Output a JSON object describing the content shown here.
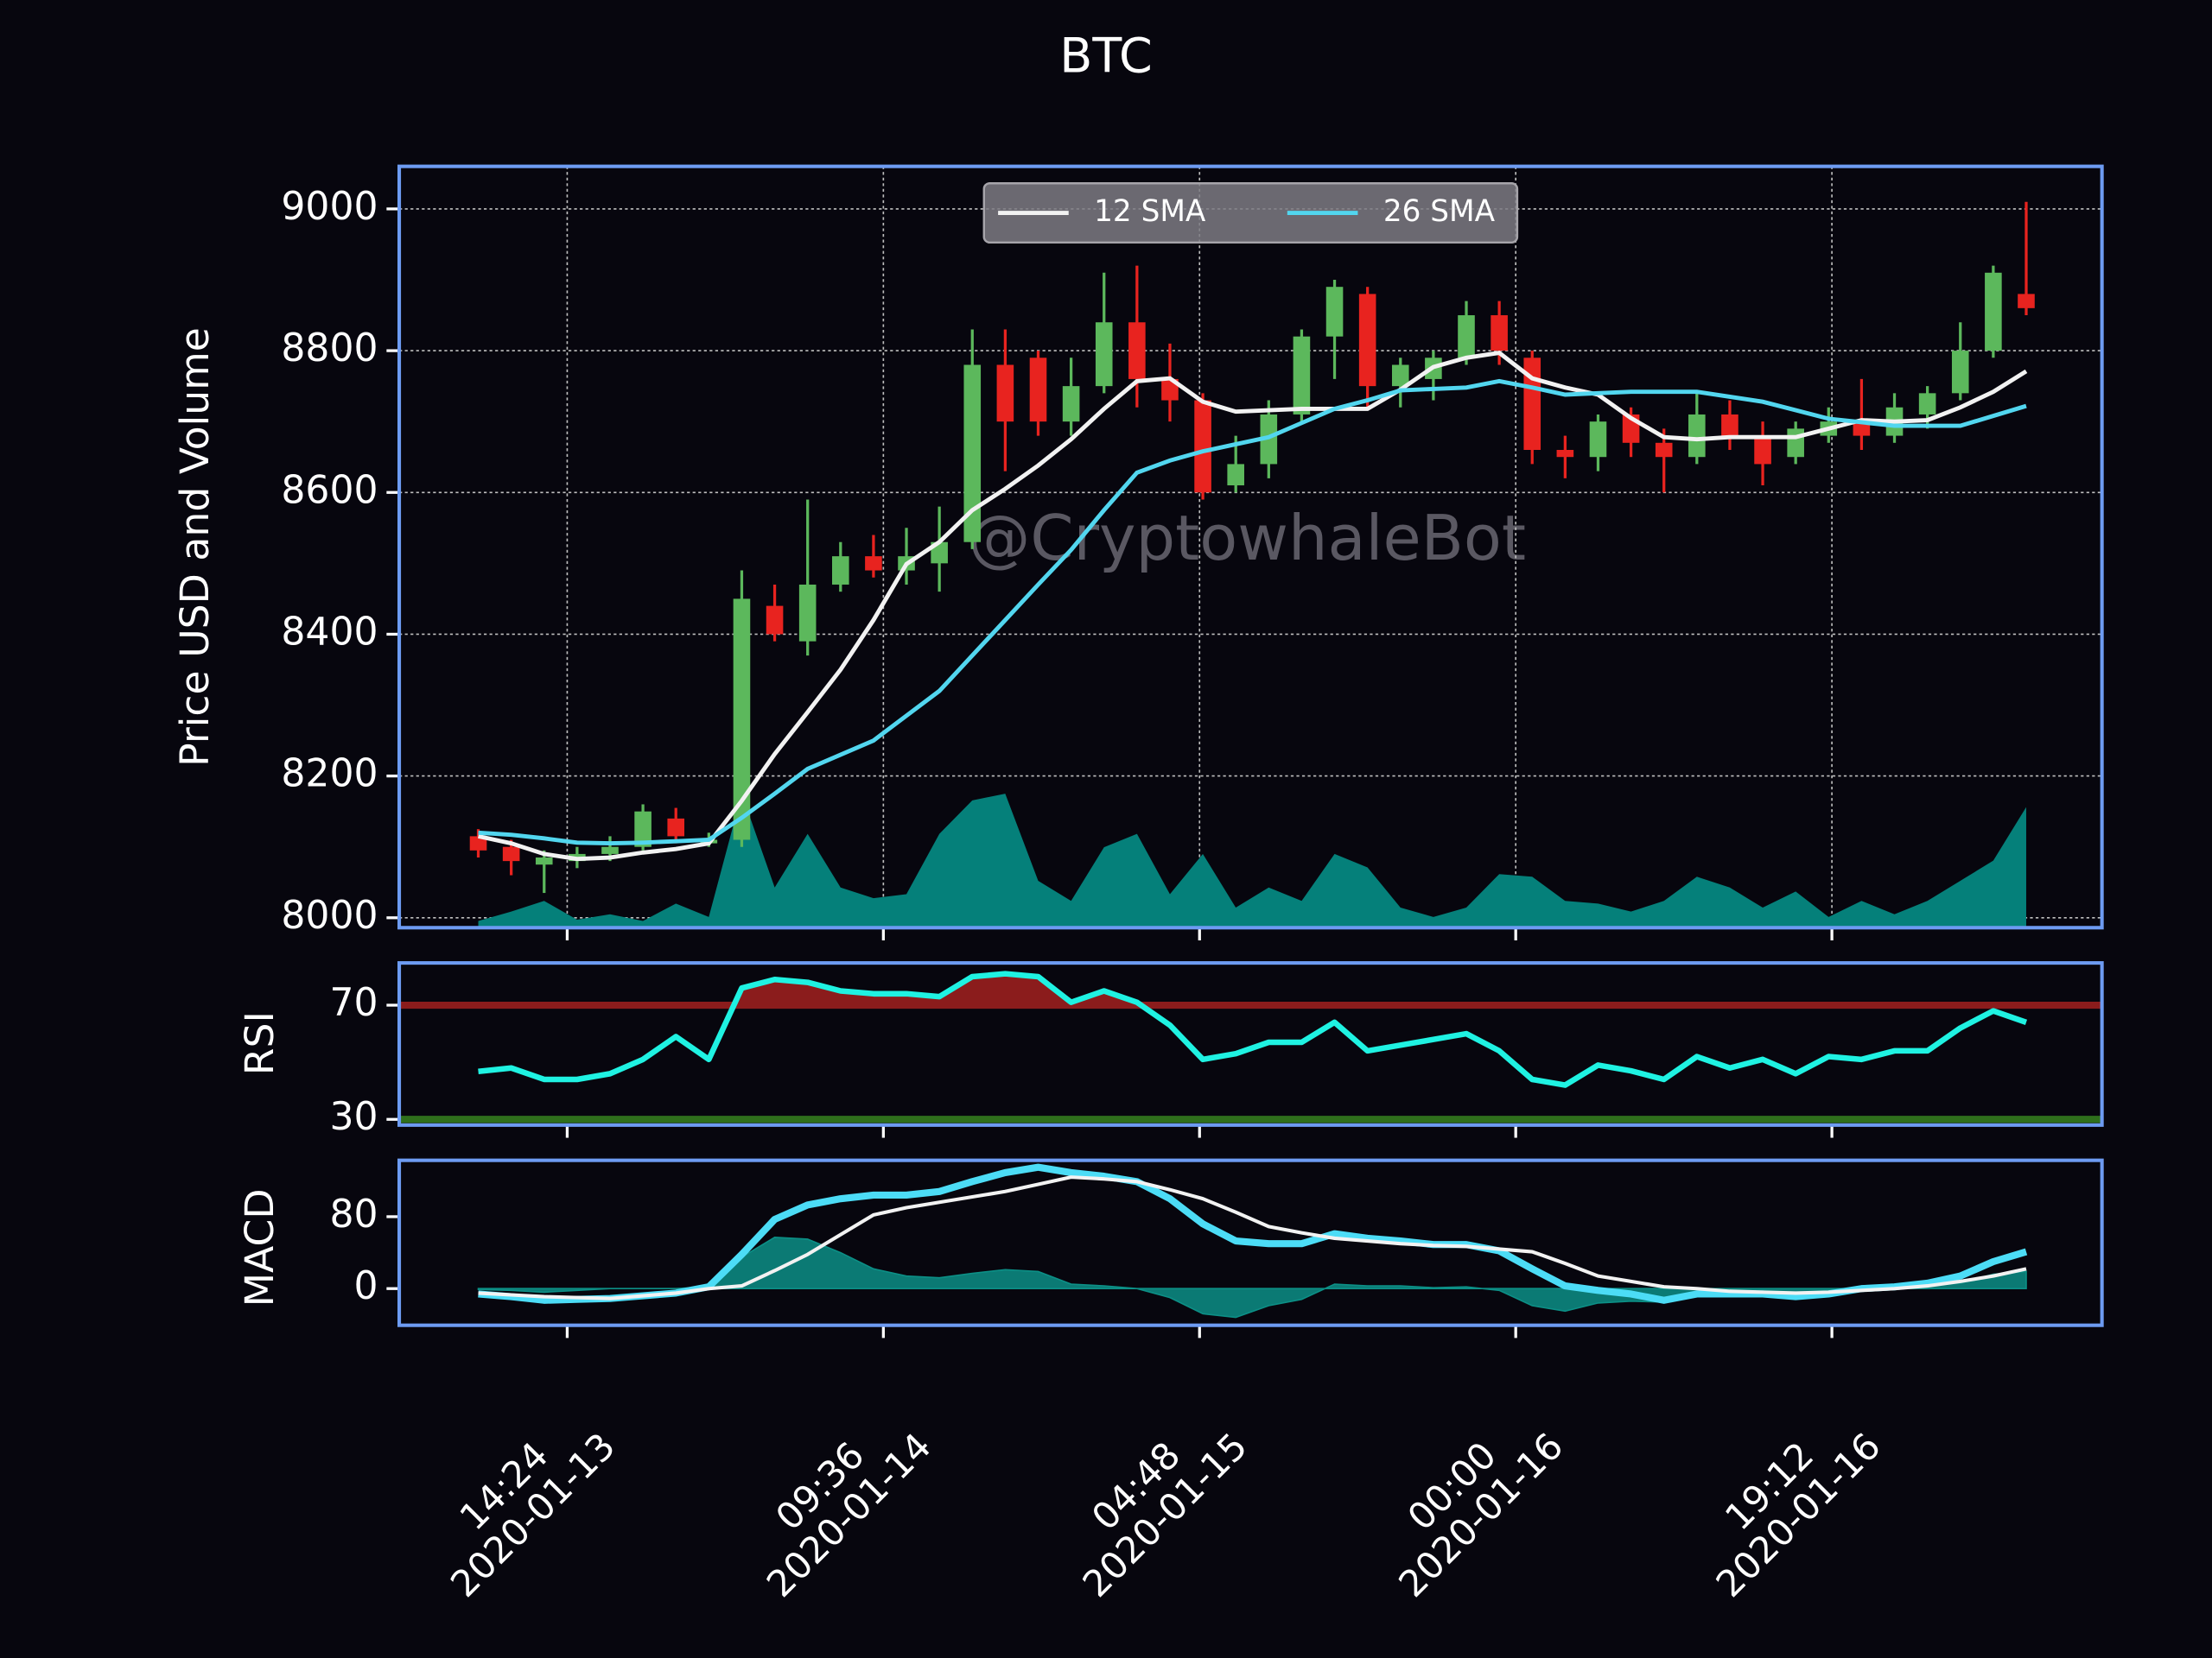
{
  "chart_data": [
    {
      "type": "candlestick",
      "title": "BTC",
      "ylabel": "Price USD and Volume",
      "watermark": "@CryptowhaleBot",
      "x": [
        "2020-01-13 09:00",
        "2020-01-13 11:00",
        "2020-01-13 13:00",
        "2020-01-13 15:00",
        "2020-01-13 17:00",
        "2020-01-13 19:00",
        "2020-01-13 21:00",
        "2020-01-13 23:00",
        "2020-01-14 01:00",
        "2020-01-14 03:00",
        "2020-01-14 05:00",
        "2020-01-14 07:00",
        "2020-01-14 09:00",
        "2020-01-14 11:00",
        "2020-01-14 13:00",
        "2020-01-14 15:00",
        "2020-01-14 17:00",
        "2020-01-14 19:00",
        "2020-01-14 21:00",
        "2020-01-14 23:00",
        "2020-01-15 01:00",
        "2020-01-15 03:00",
        "2020-01-15 05:00",
        "2020-01-15 07:00",
        "2020-01-15 09:00",
        "2020-01-15 11:00",
        "2020-01-15 13:00",
        "2020-01-15 15:00",
        "2020-01-15 17:00",
        "2020-01-15 19:00",
        "2020-01-15 21:00",
        "2020-01-15 23:00",
        "2020-01-16 01:00",
        "2020-01-16 03:00",
        "2020-01-16 05:00",
        "2020-01-16 07:00",
        "2020-01-16 09:00",
        "2020-01-16 11:00",
        "2020-01-16 13:00",
        "2020-01-16 15:00",
        "2020-01-16 17:00",
        "2020-01-16 19:00",
        "2020-01-16 21:00",
        "2020-01-16 23:00",
        "2020-01-17 01:00",
        "2020-01-17 03:00",
        "2020-01-17 05:00",
        "2020-01-17 07:00"
      ],
      "open": [
        8115,
        8100,
        8075,
        8080,
        8090,
        8100,
        8140,
        8105,
        8110,
        8440,
        8390,
        8470,
        8510,
        8490,
        8500,
        8530,
        8780,
        8790,
        8700,
        8750,
        8840,
        8760,
        8730,
        8610,
        8640,
        8710,
        8820,
        8880,
        8750,
        8760,
        8790,
        8850,
        8790,
        8660,
        8650,
        8710,
        8670,
        8650,
        8710,
        8680,
        8650,
        8680,
        8700,
        8680,
        8710,
        8740,
        8800,
        8880
      ],
      "high": [
        8125,
        8110,
        8095,
        8100,
        8115,
        8160,
        8155,
        8120,
        8490,
        8470,
        8590,
        8530,
        8540,
        8550,
        8580,
        8830,
        8830,
        8800,
        8790,
        8910,
        8920,
        8810,
        8740,
        8680,
        8730,
        8830,
        8900,
        8890,
        8790,
        8800,
        8870,
        8870,
        8800,
        8680,
        8710,
        8720,
        8690,
        8740,
        8730,
        8700,
        8700,
        8720,
        8760,
        8740,
        8750,
        8840,
        8920,
        9010
      ],
      "low": [
        8085,
        8060,
        8035,
        8070,
        8080,
        8095,
        8105,
        8100,
        8100,
        8390,
        8370,
        8460,
        8480,
        8470,
        8460,
        8520,
        8630,
        8680,
        8680,
        8740,
        8720,
        8700,
        8590,
        8600,
        8620,
        8700,
        8760,
        8720,
        8720,
        8730,
        8780,
        8780,
        8640,
        8620,
        8630,
        8650,
        8600,
        8640,
        8660,
        8610,
        8640,
        8670,
        8660,
        8670,
        8690,
        8730,
        8790,
        8850
      ],
      "close": [
        8095,
        8080,
        8085,
        8090,
        8100,
        8150,
        8115,
        8110,
        8450,
        8400,
        8470,
        8510,
        8490,
        8510,
        8530,
        8780,
        8700,
        8700,
        8750,
        8840,
        8760,
        8730,
        8600,
        8640,
        8710,
        8820,
        8890,
        8750,
        8780,
        8790,
        8850,
        8800,
        8660,
        8650,
        8700,
        8670,
        8650,
        8710,
        8680,
        8640,
        8690,
        8700,
        8680,
        8720,
        8740,
        8800,
        8910,
        8860
      ],
      "up_color": "#5cb85c",
      "down_color": "#e8231f",
      "series": [
        {
          "name": "12 SMA",
          "color": "#f2f2f2",
          "values": [
            8115,
            8105,
            8090,
            8083,
            8085,
            8092,
            8097,
            8105,
            8165,
            8231,
            8290,
            8350,
            8420,
            8499,
            8530,
            8575,
            8605,
            8638,
            8675,
            8718,
            8757,
            8761,
            8728,
            8714,
            8716,
            8718,
            8718,
            8718,
            8745,
            8777,
            8790,
            8797,
            8761,
            8748,
            8738,
            8705,
            8678,
            8675,
            8678,
            8678,
            8678,
            8690,
            8702,
            8700,
            8702,
            8720,
            8742,
            8771
          ]
        },
        {
          "name": "26 SMA",
          "color": "#52d6ef",
          "values": [
            8120,
            8117,
            8112,
            8106,
            8105,
            8106,
            8108,
            8110,
            8141,
            8175,
            8210,
            8230,
            8250,
            8285,
            8320,
            8370,
            8420,
            8470,
            8519,
            8575,
            8628,
            8645,
            8658,
            8668,
            8678,
            8698,
            8718,
            8730,
            8744,
            8746,
            8748,
            8757,
            8748,
            8738,
            8740,
            8742,
            8742,
            8742,
            8735,
            8728,
            8716,
            8704,
            8699,
            8694,
            8694,
            8694,
            8708,
            8722
          ]
        }
      ],
      "volume": [
        0.05,
        0.12,
        0.2,
        0.06,
        0.1,
        0.05,
        0.18,
        0.08,
        1.0,
        0.3,
        0.7,
        0.3,
        0.22,
        0.25,
        0.7,
        0.95,
        1.0,
        0.35,
        0.2,
        0.6,
        0.7,
        0.25,
        0.55,
        0.15,
        0.3,
        0.2,
        0.55,
        0.45,
        0.15,
        0.08,
        0.15,
        0.4,
        0.38,
        0.2,
        0.18,
        0.12,
        0.2,
        0.38,
        0.3,
        0.15,
        0.27,
        0.08,
        0.2,
        0.1,
        0.2,
        0.35,
        0.5,
        0.9
      ],
      "volume_color": "#05807a",
      "xlim": [
        "2020-01-13 04:12",
        "2020-01-17 11:36"
      ],
      "xticks": [
        {
          "value": "2020-01-13 14:24",
          "label": "14:24\n2020-01-13"
        },
        {
          "value": "2020-01-14 09:36",
          "label": "09:36\n2020-01-14"
        },
        {
          "value": "2020-01-15 04:48",
          "label": "04:48\n2020-01-15"
        },
        {
          "value": "2020-01-16 00:00",
          "label": "00:00\n2020-01-16"
        },
        {
          "value": "2020-01-16 19:12",
          "label": "19:12\n2020-01-16"
        }
      ],
      "ylim": [
        7986,
        9060
      ],
      "yticks": [
        8000,
        8200,
        8400,
        8600,
        8800,
        9000
      ],
      "y2lim": [
        0,
        5.68
      ],
      "grid": true,
      "legend": "upper center"
    },
    {
      "type": "line",
      "ylabel": "RSI",
      "series": [
        {
          "color": "#1ff2e2",
          "values": [
            46.8,
            48,
            44,
            44,
            46,
            51,
            59,
            51,
            76,
            79,
            78,
            75,
            74,
            74,
            73,
            80,
            81,
            80,
            71,
            75,
            71,
            63,
            51,
            53,
            57,
            57,
            64,
            54,
            56,
            58,
            60,
            54,
            44,
            42,
            49,
            47,
            44,
            52,
            48,
            51,
            46,
            52,
            51,
            54,
            54,
            62,
            68,
            64
          ]
        }
      ],
      "thresholds": [
        {
          "value": 70,
          "color": "#8b1c1c",
          "fill": "above"
        },
        {
          "value": 30,
          "color": "#2f6f1c"
        }
      ],
      "ylim": [
        28,
        84.8
      ],
      "yticks": [
        30,
        70
      ]
    },
    {
      "type": "line",
      "ylabel": "MACD",
      "series": [
        {
          "color": "#4cdcf6",
          "width": 5,
          "values": [
            -6,
            -9,
            -13,
            -12,
            -11,
            -8,
            -5,
            2,
            38,
            77,
            93,
            100,
            104,
            104,
            108,
            119,
            129,
            135,
            129,
            125,
            119,
            100,
            72,
            53,
            50,
            50,
            61,
            56,
            53,
            49,
            49,
            42,
            22,
            3,
            -2,
            -6,
            -13,
            -6,
            -6,
            -6,
            -9,
            -6,
            0,
            2,
            6,
            14,
            30,
            41
          ]
        },
        {
          "color": "#f2f2f2",
          "width": 2.5,
          "values": [
            -5,
            -7,
            -9,
            -10,
            -11,
            -8,
            -5,
            0,
            3,
            20,
            38,
            60,
            82,
            90,
            96,
            102,
            108,
            116,
            124,
            122,
            119,
            110,
            100,
            85,
            69,
            62,
            56,
            53,
            50,
            48,
            47,
            44,
            41,
            28,
            14,
            8,
            2,
            0,
            -3,
            -4,
            -5,
            -4,
            -2,
            0,
            3,
            8,
            14,
            22
          ]
        }
      ],
      "histogram": {
        "color": "#0c8f86",
        "values": [
          -1,
          -2,
          -4,
          -2,
          0,
          0,
          0,
          2,
          35,
          57,
          55,
          40,
          22,
          14,
          12,
          17,
          21,
          19,
          5,
          3,
          0,
          -10,
          -28,
          -32,
          -19,
          -12,
          5,
          3,
          3,
          1,
          2,
          -2,
          -19,
          -25,
          -16,
          -14,
          -15,
          -6,
          -3,
          -2,
          -4,
          -2,
          2,
          2,
          3,
          6,
          16,
          19
        ]
      },
      "ylim": [
        -40.8,
        142.7
      ],
      "yticks": [
        0,
        80
      ]
    }
  ]
}
